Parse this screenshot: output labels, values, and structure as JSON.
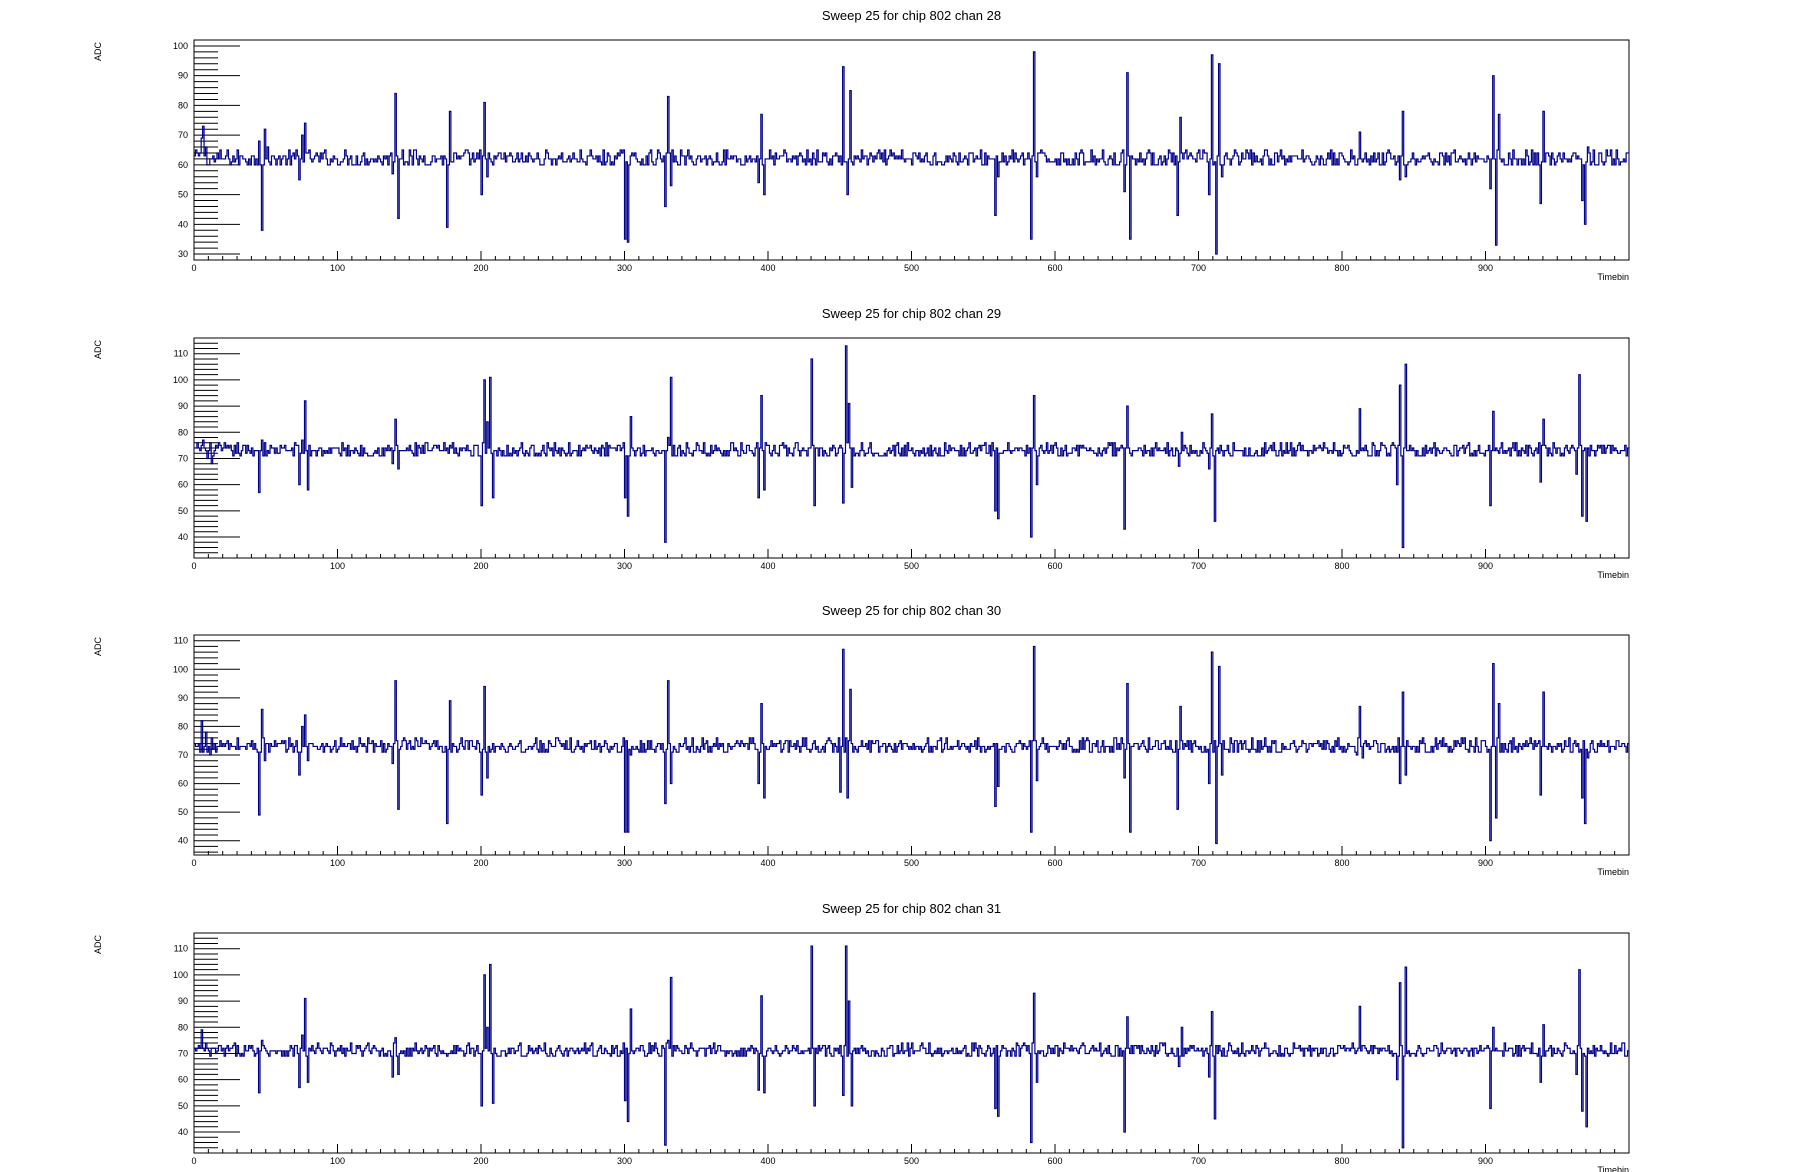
{
  "chart_data": [
    {
      "type": "line",
      "title": "Sweep 25 for chip 802 chan 28",
      "xlabel": "Timebin",
      "ylabel": "ADC",
      "xlim": [
        0,
        1000
      ],
      "ylim": [
        28,
        102
      ],
      "xticks": [
        0,
        100,
        200,
        300,
        400,
        500,
        600,
        700,
        800,
        900
      ],
      "yticks": [
        30,
        40,
        50,
        60,
        70,
        80,
        90,
        100
      ],
      "grid": false,
      "legend": "none",
      "color": "#00008b",
      "series": [
        {
          "baseline": 62,
          "spikes": [
            [
              2,
              64
            ],
            [
              5,
              69
            ],
            [
              6,
              73
            ],
            [
              8,
              66
            ],
            [
              10,
              60
            ],
            [
              45,
              68
            ],
            [
              47,
              38
            ],
            [
              49,
              72
            ],
            [
              51,
              66
            ],
            [
              73,
              55
            ],
            [
              75,
              70
            ],
            [
              77,
              74
            ],
            [
              138,
              57
            ],
            [
              140,
              84
            ],
            [
              142,
              42
            ],
            [
              145,
              65
            ],
            [
              176,
              39
            ],
            [
              178,
              78
            ],
            [
              200,
              50
            ],
            [
              202,
              81
            ],
            [
              204,
              56
            ],
            [
              300,
              35
            ],
            [
              302,
              34
            ],
            [
              328,
              46
            ],
            [
              330,
              83
            ],
            [
              332,
              53
            ],
            [
              393,
              54
            ],
            [
              395,
              77
            ],
            [
              397,
              50
            ],
            [
              450,
              63
            ],
            [
              452,
              93
            ],
            [
              455,
              50
            ],
            [
              457,
              85
            ],
            [
              558,
              43
            ],
            [
              560,
              56
            ],
            [
              583,
              35
            ],
            [
              585,
              98
            ],
            [
              587,
              56
            ],
            [
              648,
              51
            ],
            [
              650,
              91
            ],
            [
              652,
              35
            ],
            [
              685,
              43
            ],
            [
              687,
              76
            ],
            [
              707,
              50
            ],
            [
              709,
              97
            ],
            [
              712,
              30
            ],
            [
              714,
              94
            ],
            [
              716,
              56
            ],
            [
              810,
              60
            ],
            [
              812,
              71
            ],
            [
              814,
              61
            ],
            [
              840,
              55
            ],
            [
              842,
              78
            ],
            [
              844,
              56
            ],
            [
              903,
              52
            ],
            [
              905,
              90
            ],
            [
              907,
              33
            ],
            [
              909,
              77
            ],
            [
              938,
              47
            ],
            [
              940,
              78
            ],
            [
              967,
              48
            ],
            [
              969,
              40
            ],
            [
              971,
              66
            ]
          ]
        }
      ]
    },
    {
      "type": "line",
      "title": "Sweep 25 for chip 802 chan 29",
      "xlabel": "Timebin",
      "ylabel": "ADC",
      "xlim": [
        0,
        1000
      ],
      "ylim": [
        32,
        116
      ],
      "xticks": [
        0,
        100,
        200,
        300,
        400,
        500,
        600,
        700,
        800,
        900
      ],
      "yticks": [
        40,
        50,
        60,
        70,
        80,
        90,
        100,
        110
      ],
      "grid": false,
      "legend": "none",
      "color": "#00008b",
      "series": [
        {
          "baseline": 73,
          "spikes": [
            [
              3,
              74
            ],
            [
              6,
              77
            ],
            [
              9,
              70
            ],
            [
              12,
              68
            ],
            [
              45,
              57
            ],
            [
              47,
              77
            ],
            [
              73,
              60
            ],
            [
              75,
              77
            ],
            [
              77,
              92
            ],
            [
              79,
              58
            ],
            [
              138,
              68
            ],
            [
              140,
              85
            ],
            [
              142,
              66
            ],
            [
              200,
              52
            ],
            [
              202,
              100
            ],
            [
              204,
              84
            ],
            [
              206,
              101
            ],
            [
              208,
              55
            ],
            [
              300,
              55
            ],
            [
              302,
              48
            ],
            [
              304,
              86
            ],
            [
              328,
              38
            ],
            [
              330,
              78
            ],
            [
              332,
              101
            ],
            [
              393,
              55
            ],
            [
              395,
              94
            ],
            [
              397,
              58
            ],
            [
              430,
              108
            ],
            [
              432,
              52
            ],
            [
              452,
              53
            ],
            [
              454,
              113
            ],
            [
              456,
              91
            ],
            [
              458,
              59
            ],
            [
              558,
              50
            ],
            [
              560,
              47
            ],
            [
              583,
              40
            ],
            [
              585,
              94
            ],
            [
              587,
              60
            ],
            [
              648,
              43
            ],
            [
              650,
              90
            ],
            [
              686,
              67
            ],
            [
              688,
              80
            ],
            [
              707,
              66
            ],
            [
              709,
              87
            ],
            [
              711,
              46
            ],
            [
              812,
              89
            ],
            [
              814,
              74
            ],
            [
              838,
              60
            ],
            [
              840,
              98
            ],
            [
              842,
              36
            ],
            [
              844,
              106
            ],
            [
              903,
              52
            ],
            [
              905,
              88
            ],
            [
              938,
              61
            ],
            [
              940,
              85
            ],
            [
              963,
              64
            ],
            [
              965,
              102
            ],
            [
              967,
              48
            ],
            [
              970,
              46
            ]
          ]
        }
      ]
    },
    {
      "type": "line",
      "title": "Sweep 25 for chip 802 chan 30",
      "xlabel": "Timebin",
      "ylabel": "ADC",
      "xlim": [
        0,
        1000
      ],
      "ylim": [
        35,
        112
      ],
      "xticks": [
        0,
        100,
        200,
        300,
        400,
        500,
        600,
        700,
        800,
        900
      ],
      "yticks": [
        40,
        50,
        60,
        70,
        80,
        90,
        100,
        110
      ],
      "grid": false,
      "legend": "none",
      "color": "#00008b",
      "series": [
        {
          "baseline": 73,
          "spikes": [
            [
              3,
              74
            ],
            [
              5,
              82
            ],
            [
              8,
              78
            ],
            [
              11,
              70
            ],
            [
              45,
              49
            ],
            [
              47,
              86
            ],
            [
              49,
              68
            ],
            [
              73,
              63
            ],
            [
              75,
              80
            ],
            [
              77,
              84
            ],
            [
              79,
              68
            ],
            [
              138,
              67
            ],
            [
              140,
              96
            ],
            [
              142,
              51
            ],
            [
              176,
              46
            ],
            [
              178,
              89
            ],
            [
              200,
              56
            ],
            [
              202,
              94
            ],
            [
              204,
              62
            ],
            [
              300,
              43
            ],
            [
              302,
              43
            ],
            [
              304,
              70
            ],
            [
              328,
              53
            ],
            [
              330,
              96
            ],
            [
              332,
              60
            ],
            [
              393,
              60
            ],
            [
              395,
              88
            ],
            [
              397,
              55
            ],
            [
              450,
              57
            ],
            [
              452,
              107
            ],
            [
              455,
              55
            ],
            [
              457,
              93
            ],
            [
              558,
              52
            ],
            [
              560,
              59
            ],
            [
              583,
              43
            ],
            [
              585,
              108
            ],
            [
              587,
              61
            ],
            [
              648,
              62
            ],
            [
              650,
              95
            ],
            [
              652,
              43
            ],
            [
              685,
              51
            ],
            [
              687,
              87
            ],
            [
              707,
              60
            ],
            [
              709,
              106
            ],
            [
              712,
              39
            ],
            [
              714,
              101
            ],
            [
              716,
              63
            ],
            [
              810,
              70
            ],
            [
              812,
              87
            ],
            [
              814,
              69
            ],
            [
              840,
              60
            ],
            [
              842,
              92
            ],
            [
              844,
              63
            ],
            [
              903,
              40
            ],
            [
              905,
              102
            ],
            [
              907,
              48
            ],
            [
              909,
              88
            ],
            [
              938,
              56
            ],
            [
              940,
              92
            ],
            [
              967,
              55
            ],
            [
              969,
              46
            ],
            [
              971,
              69
            ]
          ]
        }
      ]
    },
    {
      "type": "line",
      "title": "Sweep 25 for chip 802 chan 31",
      "xlabel": "Timebin",
      "ylabel": "ADC",
      "xlim": [
        0,
        1000
      ],
      "ylim": [
        32,
        116
      ],
      "xticks": [
        0,
        100,
        200,
        300,
        400,
        500,
        600,
        700,
        800,
        900
      ],
      "yticks": [
        40,
        50,
        60,
        70,
        80,
        90,
        100,
        110
      ],
      "grid": false,
      "legend": "none",
      "color": "#00008b",
      "series": [
        {
          "baseline": 71,
          "spikes": [
            [
              3,
              73
            ],
            [
              5,
              79
            ],
            [
              8,
              74
            ],
            [
              11,
              69
            ],
            [
              45,
              55
            ],
            [
              47,
              75
            ],
            [
              73,
              57
            ],
            [
              75,
              77
            ],
            [
              77,
              91
            ],
            [
              79,
              59
            ],
            [
              138,
              61
            ],
            [
              140,
              76
            ],
            [
              142,
              62
            ],
            [
              200,
              50
            ],
            [
              202,
              100
            ],
            [
              204,
              80
            ],
            [
              206,
              104
            ],
            [
              208,
              51
            ],
            [
              300,
              52
            ],
            [
              302,
              44
            ],
            [
              304,
              87
            ],
            [
              328,
              35
            ],
            [
              330,
              75
            ],
            [
              332,
              99
            ],
            [
              393,
              56
            ],
            [
              395,
              92
            ],
            [
              397,
              55
            ],
            [
              430,
              111
            ],
            [
              432,
              50
            ],
            [
              452,
              54
            ],
            [
              454,
              111
            ],
            [
              456,
              90
            ],
            [
              458,
              50
            ],
            [
              558,
              49
            ],
            [
              560,
              46
            ],
            [
              583,
              36
            ],
            [
              585,
              93
            ],
            [
              587,
              59
            ],
            [
              648,
              40
            ],
            [
              650,
              84
            ],
            [
              686,
              65
            ],
            [
              688,
              80
            ],
            [
              707,
              61
            ],
            [
              709,
              86
            ],
            [
              711,
              45
            ],
            [
              812,
              88
            ],
            [
              814,
              73
            ],
            [
              838,
              60
            ],
            [
              840,
              97
            ],
            [
              842,
              34
            ],
            [
              844,
              103
            ],
            [
              903,
              49
            ],
            [
              905,
              80
            ],
            [
              938,
              59
            ],
            [
              940,
              81
            ],
            [
              963,
              62
            ],
            [
              965,
              102
            ],
            [
              967,
              48
            ],
            [
              970,
              42
            ]
          ]
        }
      ]
    }
  ]
}
